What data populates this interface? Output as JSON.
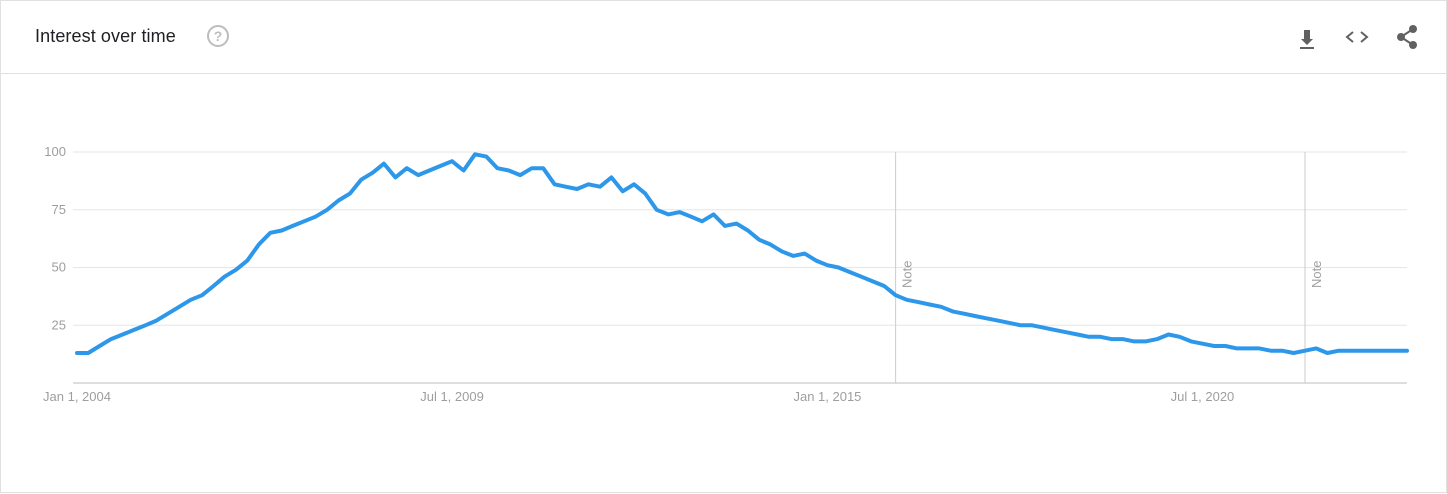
{
  "header": {
    "title": "Interest over time",
    "help_icon": "question-mark-icon",
    "help_symbol": "?",
    "actions": [
      {
        "name": "download",
        "icon": "download-icon"
      },
      {
        "name": "embed",
        "icon": "code-icon"
      },
      {
        "name": "share",
        "icon": "share-icon"
      }
    ]
  },
  "colors": {
    "series": "#2d97ea",
    "grid": "#e6e6e6",
    "axis_text": "#9e9e9e",
    "note_line": "#cccccc"
  },
  "chart_data": {
    "type": "line",
    "title": "",
    "xlabel": "",
    "ylabel": "",
    "x_range": [
      "2004-01-01",
      "2023-07-01"
    ],
    "ylim": [
      0,
      100
    ],
    "y_ticks": [
      25,
      50,
      75,
      100
    ],
    "x_ticks": [
      {
        "date": "2004-01-01",
        "label": "Jan 1, 2004"
      },
      {
        "date": "2009-07-01",
        "label": "Jul 1, 2009"
      },
      {
        "date": "2015-01-01",
        "label": "Jan 1, 2015"
      },
      {
        "date": "2020-07-01",
        "label": "Jul 1, 2020"
      }
    ],
    "notes": [
      {
        "date": "2016-01-01",
        "label": "Note"
      },
      {
        "date": "2022-01-01",
        "label": "Note"
      }
    ],
    "grid": true,
    "legend": "none",
    "series": [
      {
        "points": [
          [
            "2004-01-01",
            13
          ],
          [
            "2004-03-01",
            13
          ],
          [
            "2004-05-01",
            16
          ],
          [
            "2004-07-01",
            19
          ],
          [
            "2004-09-01",
            21
          ],
          [
            "2004-11-01",
            23
          ],
          [
            "2005-01-01",
            25
          ],
          [
            "2005-03-01",
            27
          ],
          [
            "2005-05-01",
            30
          ],
          [
            "2005-07-01",
            33
          ],
          [
            "2005-09-01",
            36
          ],
          [
            "2005-11-01",
            38
          ],
          [
            "2006-01-01",
            42
          ],
          [
            "2006-03-01",
            46
          ],
          [
            "2006-05-01",
            49
          ],
          [
            "2006-07-01",
            53
          ],
          [
            "2006-09-01",
            60
          ],
          [
            "2006-11-01",
            65
          ],
          [
            "2007-01-01",
            66
          ],
          [
            "2007-03-01",
            68
          ],
          [
            "2007-05-01",
            70
          ],
          [
            "2007-07-01",
            72
          ],
          [
            "2007-09-01",
            75
          ],
          [
            "2007-11-01",
            79
          ],
          [
            "2008-01-01",
            82
          ],
          [
            "2008-03-01",
            88
          ],
          [
            "2008-05-01",
            91
          ],
          [
            "2008-07-01",
            95
          ],
          [
            "2008-09-01",
            89
          ],
          [
            "2008-11-01",
            93
          ],
          [
            "2009-01-01",
            90
          ],
          [
            "2009-03-01",
            92
          ],
          [
            "2009-05-01",
            94
          ],
          [
            "2009-07-01",
            96
          ],
          [
            "2009-09-01",
            92
          ],
          [
            "2009-11-01",
            99
          ],
          [
            "2010-01-01",
            98
          ],
          [
            "2010-03-01",
            93
          ],
          [
            "2010-05-01",
            92
          ],
          [
            "2010-07-01",
            90
          ],
          [
            "2010-09-01",
            93
          ],
          [
            "2010-11-01",
            93
          ],
          [
            "2011-01-01",
            86
          ],
          [
            "2011-03-01",
            85
          ],
          [
            "2011-05-01",
            84
          ],
          [
            "2011-07-01",
            86
          ],
          [
            "2011-09-01",
            85
          ],
          [
            "2011-11-01",
            89
          ],
          [
            "2012-01-01",
            83
          ],
          [
            "2012-03-01",
            86
          ],
          [
            "2012-05-01",
            82
          ],
          [
            "2012-07-01",
            75
          ],
          [
            "2012-09-01",
            73
          ],
          [
            "2012-11-01",
            74
          ],
          [
            "2013-01-01",
            72
          ],
          [
            "2013-03-01",
            70
          ],
          [
            "2013-05-01",
            73
          ],
          [
            "2013-07-01",
            68
          ],
          [
            "2013-09-01",
            69
          ],
          [
            "2013-11-01",
            66
          ],
          [
            "2014-01-01",
            62
          ],
          [
            "2014-03-01",
            60
          ],
          [
            "2014-05-01",
            57
          ],
          [
            "2014-07-01",
            55
          ],
          [
            "2014-09-01",
            56
          ],
          [
            "2014-11-01",
            53
          ],
          [
            "2015-01-01",
            51
          ],
          [
            "2015-03-01",
            50
          ],
          [
            "2015-05-01",
            48
          ],
          [
            "2015-07-01",
            46
          ],
          [
            "2015-09-01",
            44
          ],
          [
            "2015-11-01",
            42
          ],
          [
            "2016-01-01",
            38
          ],
          [
            "2016-03-01",
            36
          ],
          [
            "2016-05-01",
            35
          ],
          [
            "2016-07-01",
            34
          ],
          [
            "2016-09-01",
            33
          ],
          [
            "2016-11-01",
            31
          ],
          [
            "2017-01-01",
            30
          ],
          [
            "2017-03-01",
            29
          ],
          [
            "2017-05-01",
            28
          ],
          [
            "2017-07-01",
            27
          ],
          [
            "2017-09-01",
            26
          ],
          [
            "2017-11-01",
            25
          ],
          [
            "2018-01-01",
            25
          ],
          [
            "2018-03-01",
            24
          ],
          [
            "2018-05-01",
            23
          ],
          [
            "2018-07-01",
            22
          ],
          [
            "2018-09-01",
            21
          ],
          [
            "2018-11-01",
            20
          ],
          [
            "2019-01-01",
            20
          ],
          [
            "2019-03-01",
            19
          ],
          [
            "2019-05-01",
            19
          ],
          [
            "2019-07-01",
            18
          ],
          [
            "2019-09-01",
            18
          ],
          [
            "2019-11-01",
            19
          ],
          [
            "2020-01-01",
            21
          ],
          [
            "2020-03-01",
            20
          ],
          [
            "2020-05-01",
            18
          ],
          [
            "2020-07-01",
            17
          ],
          [
            "2020-09-01",
            16
          ],
          [
            "2020-11-01",
            16
          ],
          [
            "2021-01-01",
            15
          ],
          [
            "2021-03-01",
            15
          ],
          [
            "2021-05-01",
            15
          ],
          [
            "2021-07-01",
            14
          ],
          [
            "2021-09-01",
            14
          ],
          [
            "2021-11-01",
            13
          ],
          [
            "2022-01-01",
            14
          ],
          [
            "2022-03-01",
            15
          ],
          [
            "2022-05-01",
            13
          ],
          [
            "2022-07-01",
            14
          ],
          [
            "2022-09-01",
            14
          ],
          [
            "2022-11-01",
            14
          ],
          [
            "2023-01-01",
            14
          ],
          [
            "2023-03-01",
            14
          ],
          [
            "2023-05-01",
            14
          ],
          [
            "2023-07-01",
            14
          ]
        ]
      }
    ]
  }
}
